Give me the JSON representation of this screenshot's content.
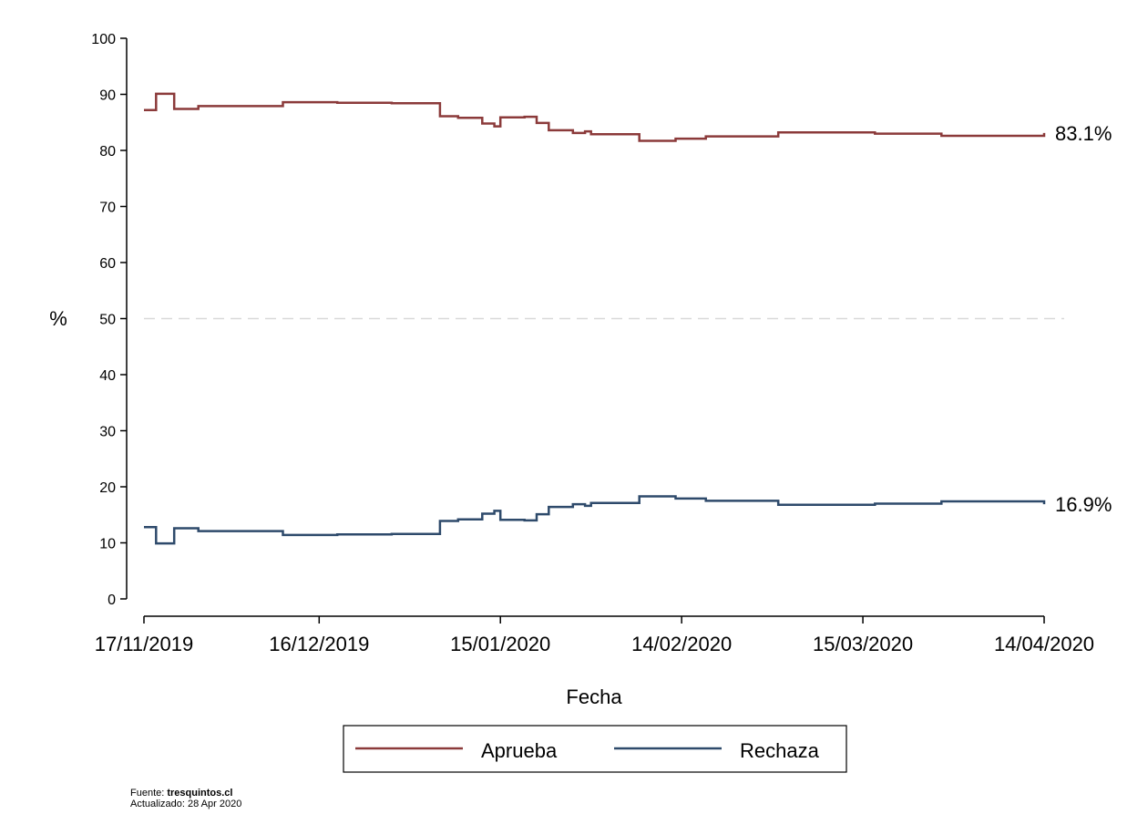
{
  "chart_data": {
    "type": "line",
    "xlabel": "Fecha",
    "ylabel": "%",
    "ylim": [
      0,
      100
    ],
    "yticks": [
      0,
      10,
      20,
      30,
      40,
      50,
      60,
      70,
      80,
      90,
      100
    ],
    "xlim": [
      "2019-11-17",
      "2020-04-14"
    ],
    "xticks": [
      "17/11/2019",
      "16/12/2019",
      "15/01/2020",
      "14/02/2020",
      "15/03/2020",
      "14/04/2020"
    ],
    "reference_line": {
      "y": 50,
      "style": "dashed",
      "color": "#d9d9d9"
    },
    "grid": false,
    "legend_position": "bottom",
    "series": [
      {
        "name": "Aprueba",
        "color": "#8b3a3a",
        "end_label": "83.1%",
        "step": true,
        "points": [
          [
            "2019-11-17",
            87.2
          ],
          [
            "2019-11-19",
            90.1
          ],
          [
            "2019-11-22",
            87.4
          ],
          [
            "2019-11-26",
            87.9
          ],
          [
            "2019-12-10",
            88.6
          ],
          [
            "2019-12-19",
            88.5
          ],
          [
            "2019-12-28",
            88.4
          ],
          [
            "2020-01-05",
            86.1
          ],
          [
            "2020-01-08",
            85.8
          ],
          [
            "2020-01-12",
            84.8
          ],
          [
            "2020-01-14",
            84.3
          ],
          [
            "2020-01-15",
            85.9
          ],
          [
            "2020-01-19",
            86.0
          ],
          [
            "2020-01-21",
            84.9
          ],
          [
            "2020-01-23",
            83.6
          ],
          [
            "2020-01-27",
            83.1
          ],
          [
            "2020-01-29",
            83.4
          ],
          [
            "2020-01-30",
            82.9
          ],
          [
            "2020-02-07",
            81.7
          ],
          [
            "2020-02-13",
            82.1
          ],
          [
            "2020-02-18",
            82.5
          ],
          [
            "2020-03-01",
            83.2
          ],
          [
            "2020-03-17",
            83.0
          ],
          [
            "2020-03-28",
            82.6
          ],
          [
            "2020-04-14",
            83.1
          ]
        ]
      },
      {
        "name": "Rechaza",
        "color": "#2e4a6b",
        "end_label": "16.9%",
        "step": true,
        "points": [
          [
            "2019-11-17",
            12.8
          ],
          [
            "2019-11-19",
            9.9
          ],
          [
            "2019-11-22",
            12.6
          ],
          [
            "2019-11-26",
            12.1
          ],
          [
            "2019-12-10",
            11.4
          ],
          [
            "2019-12-19",
            11.5
          ],
          [
            "2019-12-28",
            11.6
          ],
          [
            "2020-01-05",
            13.9
          ],
          [
            "2020-01-08",
            14.2
          ],
          [
            "2020-01-12",
            15.2
          ],
          [
            "2020-01-14",
            15.7
          ],
          [
            "2020-01-15",
            14.1
          ],
          [
            "2020-01-19",
            14.0
          ],
          [
            "2020-01-21",
            15.1
          ],
          [
            "2020-01-23",
            16.4
          ],
          [
            "2020-01-27",
            16.9
          ],
          [
            "2020-01-29",
            16.6
          ],
          [
            "2020-01-30",
            17.1
          ],
          [
            "2020-02-07",
            18.3
          ],
          [
            "2020-02-13",
            17.9
          ],
          [
            "2020-02-18",
            17.5
          ],
          [
            "2020-03-01",
            16.8
          ],
          [
            "2020-03-17",
            17.0
          ],
          [
            "2020-03-28",
            17.4
          ],
          [
            "2020-04-14",
            16.9
          ]
        ]
      }
    ]
  },
  "footer": {
    "source_prefix": "Fuente: ",
    "source_name": "tresquintos.cl",
    "updated": "Actualizado: 28 Apr 2020"
  }
}
